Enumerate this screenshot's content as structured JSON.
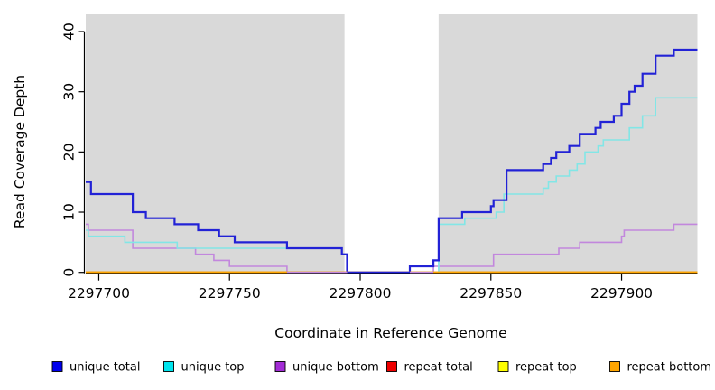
{
  "chart_data": {
    "type": "line",
    "subtype": "step-coverage",
    "title": "",
    "xlabel": "Coordinate in Reference Genome",
    "ylabel": "Read Coverage Depth",
    "xlim": [
      2297695,
      2297929
    ],
    "ylim": [
      0,
      43
    ],
    "x_ticks": [
      2297700,
      2297750,
      2297800,
      2297850,
      2297900
    ],
    "y_ticks": [
      0,
      10,
      20,
      30,
      40
    ],
    "grid": false,
    "legend_position": "bottom",
    "panel_bg": "#d9d9d9",
    "uncovered_region": [
      2297794,
      2297830
    ],
    "step_mode": "step-after",
    "series": [
      {
        "name": "unique total",
        "color": "#2222d6",
        "legend_color": "#0000ee",
        "width": 2.2,
        "points": [
          [
            2297695,
            15
          ],
          [
            2297697,
            13
          ],
          [
            2297713,
            10
          ],
          [
            2297718,
            9
          ],
          [
            2297729,
            8
          ],
          [
            2297738,
            7
          ],
          [
            2297746,
            6
          ],
          [
            2297752,
            5
          ],
          [
            2297772,
            4
          ],
          [
            2297793,
            3
          ],
          [
            2297795,
            0
          ],
          [
            2297819,
            1
          ],
          [
            2297828,
            2
          ],
          [
            2297830,
            9
          ],
          [
            2297839,
            10
          ],
          [
            2297850,
            11
          ],
          [
            2297851,
            12
          ],
          [
            2297856,
            17
          ],
          [
            2297870,
            18
          ],
          [
            2297873,
            19
          ],
          [
            2297875,
            20
          ],
          [
            2297880,
            21
          ],
          [
            2297884,
            23
          ],
          [
            2297890,
            24
          ],
          [
            2297892,
            25
          ],
          [
            2297897,
            26
          ],
          [
            2297900,
            28
          ],
          [
            2297903,
            30
          ],
          [
            2297905,
            31
          ],
          [
            2297908,
            33
          ],
          [
            2297913,
            36
          ],
          [
            2297920,
            37
          ]
        ]
      },
      {
        "name": "unique top",
        "color": "#82e6e6",
        "legend_color": "#00e5ee",
        "width": 1.6,
        "points": [
          [
            2297695,
            7
          ],
          [
            2297696,
            6
          ],
          [
            2297710,
            5
          ],
          [
            2297730,
            4
          ],
          [
            2297793,
            3
          ],
          [
            2297795,
            0
          ],
          [
            2297830,
            8
          ],
          [
            2297840,
            9
          ],
          [
            2297852,
            10
          ],
          [
            2297855,
            13
          ],
          [
            2297870,
            14
          ],
          [
            2297872,
            15
          ],
          [
            2297875,
            16
          ],
          [
            2297880,
            17
          ],
          [
            2297883,
            18
          ],
          [
            2297886,
            20
          ],
          [
            2297891,
            21
          ],
          [
            2297893,
            22
          ],
          [
            2297903,
            24
          ],
          [
            2297908,
            26
          ],
          [
            2297913,
            29
          ]
        ]
      },
      {
        "name": "unique bottom",
        "color": "#c287dd",
        "legend_color": "#a32cd6",
        "width": 1.6,
        "points": [
          [
            2297695,
            8
          ],
          [
            2297696,
            7
          ],
          [
            2297713,
            4
          ],
          [
            2297737,
            3
          ],
          [
            2297744,
            2
          ],
          [
            2297750,
            1
          ],
          [
            2297772,
            0
          ],
          [
            2297828,
            1
          ],
          [
            2297851,
            3
          ],
          [
            2297876,
            4
          ],
          [
            2297884,
            5
          ],
          [
            2297900,
            6
          ],
          [
            2297901,
            7
          ],
          [
            2297920,
            8
          ]
        ]
      },
      {
        "name": "repeat total",
        "color": "#e00000",
        "legend_color": "#ee0000",
        "width": 1.6,
        "points": [
          [
            2297695,
            0
          ]
        ]
      },
      {
        "name": "repeat top",
        "color": "#ffff00",
        "legend_color": "#ffff00",
        "width": 1.6,
        "points": [
          [
            2297695,
            0
          ]
        ]
      },
      {
        "name": "repeat bottom",
        "color": "#ffa500",
        "legend_color": "#ffa500",
        "width": 2,
        "points": [
          [
            2297695,
            0
          ]
        ]
      }
    ],
    "draw_order": [
      3,
      4,
      5,
      2,
      1,
      0
    ]
  }
}
